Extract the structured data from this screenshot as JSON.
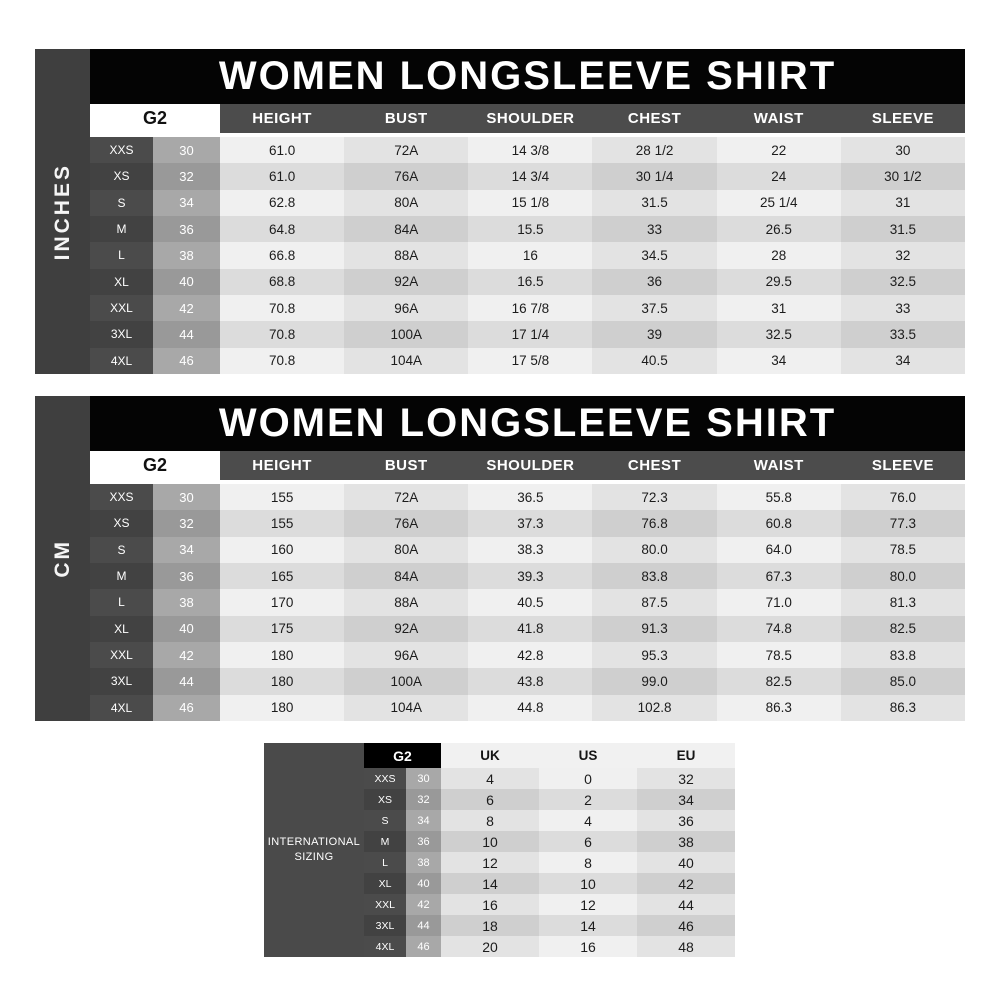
{
  "tables": [
    {
      "unit_label": "INCHES",
      "title": "WOMEN LONGSLEEVE SHIRT",
      "size_system_label": "G2",
      "columns": [
        "HEIGHT",
        "BUST",
        "SHOULDER",
        "CHEST",
        "WAIST",
        "SLEEVE"
      ],
      "rows": [
        {
          "size": "XXS",
          "g2": "30",
          "values": [
            "61.0",
            "72A",
            "14 3/8",
            "28 1/2",
            "22",
            "30"
          ]
        },
        {
          "size": "XS",
          "g2": "32",
          "values": [
            "61.0",
            "76A",
            "14 3/4",
            "30 1/4",
            "24",
            "30 1/2"
          ]
        },
        {
          "size": "S",
          "g2": "34",
          "values": [
            "62.8",
            "80A",
            "15 1/8",
            "31.5",
            "25 1/4",
            "31"
          ]
        },
        {
          "size": "M",
          "g2": "36",
          "values": [
            "64.8",
            "84A",
            "15.5",
            "33",
            "26.5",
            "31.5"
          ]
        },
        {
          "size": "L",
          "g2": "38",
          "values": [
            "66.8",
            "88A",
            "16",
            "34.5",
            "28",
            "32"
          ]
        },
        {
          "size": "XL",
          "g2": "40",
          "values": [
            "68.8",
            "92A",
            "16.5",
            "36",
            "29.5",
            "32.5"
          ]
        },
        {
          "size": "XXL",
          "g2": "42",
          "values": [
            "70.8",
            "96A",
            "16 7/8",
            "37.5",
            "31",
            "33"
          ]
        },
        {
          "size": "3XL",
          "g2": "44",
          "values": [
            "70.8",
            "100A",
            "17 1/4",
            "39",
            "32.5",
            "33.5"
          ]
        },
        {
          "size": "4XL",
          "g2": "46",
          "values": [
            "70.8",
            "104A",
            "17 5/8",
            "40.5",
            "34",
            "34"
          ]
        }
      ]
    },
    {
      "unit_label": "CM",
      "title": "WOMEN LONGSLEEVE SHIRT",
      "size_system_label": "G2",
      "columns": [
        "HEIGHT",
        "BUST",
        "SHOULDER",
        "CHEST",
        "WAIST",
        "SLEEVE"
      ],
      "rows": [
        {
          "size": "XXS",
          "g2": "30",
          "values": [
            "155",
            "72A",
            "36.5",
            "72.3",
            "55.8",
            "76.0"
          ]
        },
        {
          "size": "XS",
          "g2": "32",
          "values": [
            "155",
            "76A",
            "37.3",
            "76.8",
            "60.8",
            "77.3"
          ]
        },
        {
          "size": "S",
          "g2": "34",
          "values": [
            "160",
            "80A",
            "38.3",
            "80.0",
            "64.0",
            "78.5"
          ]
        },
        {
          "size": "M",
          "g2": "36",
          "values": [
            "165",
            "84A",
            "39.3",
            "83.8",
            "67.3",
            "80.0"
          ]
        },
        {
          "size": "L",
          "g2": "38",
          "values": [
            "170",
            "88A",
            "40.5",
            "87.5",
            "71.0",
            "81.3"
          ]
        },
        {
          "size": "XL",
          "g2": "40",
          "values": [
            "175",
            "92A",
            "41.8",
            "91.3",
            "74.8",
            "82.5"
          ]
        },
        {
          "size": "XXL",
          "g2": "42",
          "values": [
            "180",
            "96A",
            "42.8",
            "95.3",
            "78.5",
            "83.8"
          ]
        },
        {
          "size": "3XL",
          "g2": "44",
          "values": [
            "180",
            "100A",
            "43.8",
            "99.0",
            "82.5",
            "85.0"
          ]
        },
        {
          "size": "4XL",
          "g2": "46",
          "values": [
            "180",
            "104A",
            "44.8",
            "102.8",
            "86.3",
            "86.3"
          ]
        }
      ]
    }
  ],
  "international": {
    "label": "INTERNATIONAL SIZING",
    "label_line1": "INTERNATIONAL",
    "label_line2": "SIZING",
    "size_system_label": "G2",
    "columns": [
      "UK",
      "US",
      "EU"
    ],
    "rows": [
      {
        "size": "XXS",
        "g2": "30",
        "values": [
          "4",
          "0",
          "32"
        ]
      },
      {
        "size": "XS",
        "g2": "32",
        "values": [
          "6",
          "2",
          "34"
        ]
      },
      {
        "size": "S",
        "g2": "34",
        "values": [
          "8",
          "4",
          "36"
        ]
      },
      {
        "size": "M",
        "g2": "36",
        "values": [
          "10",
          "6",
          "38"
        ]
      },
      {
        "size": "L",
        "g2": "38",
        "values": [
          "12",
          "8",
          "40"
        ]
      },
      {
        "size": "XL",
        "g2": "40",
        "values": [
          "14",
          "10",
          "42"
        ]
      },
      {
        "size": "XXL",
        "g2": "42",
        "values": [
          "16",
          "12",
          "44"
        ]
      },
      {
        "size": "3XL",
        "g2": "44",
        "values": [
          "18",
          "14",
          "46"
        ]
      },
      {
        "size": "4XL",
        "g2": "46",
        "values": [
          "20",
          "16",
          "48"
        ]
      }
    ]
  },
  "colors": {
    "page_background": "#ffffff",
    "title_bar": "#040404",
    "column_header": "#4c4c4c",
    "unit_band": "#3f3f3f",
    "intl_label_block": "#4a4a4a",
    "g2_header_top_tables": "#ffffff",
    "g2_header_intl": "#000000",
    "size_cell_odd": "#4b4b4b",
    "size_cell_even": "#424242",
    "number_cell_odd": "#a8a8a8",
    "number_cell_even": "#999999",
    "value_cell_light_odd": "#f0f0f0",
    "value_cell_dark_odd": "#e3e3e3",
    "value_cell_light_even": "#dcdcdc",
    "value_cell_dark_even": "#cfcfcf",
    "body_text": "#1c1c1c"
  }
}
